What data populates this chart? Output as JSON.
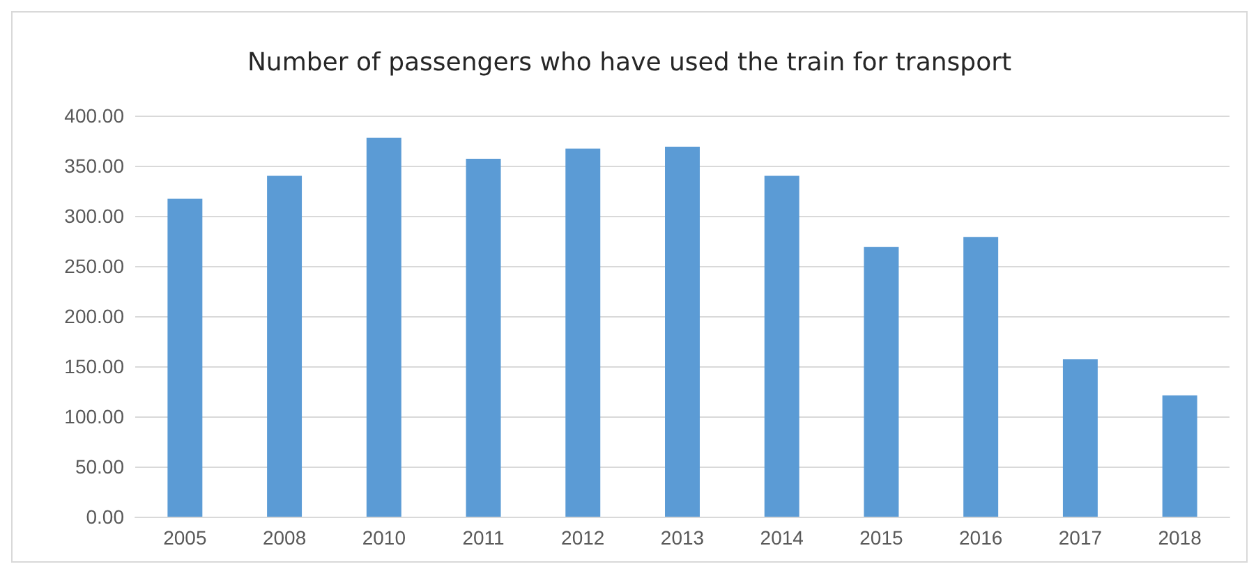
{
  "chart_data": {
    "type": "bar",
    "title": "Number of passengers who have used the train for transport",
    "categories": [
      "2005",
      "2008",
      "2010",
      "2011",
      "2012",
      "2013",
      "2014",
      "2015",
      "2016",
      "2017",
      "2018"
    ],
    "values": [
      317,
      340,
      378,
      357,
      367,
      369,
      340,
      269,
      279,
      157,
      121
    ],
    "color": "#5b9bd5",
    "ylim": [
      0,
      400
    ],
    "yticks": [
      {
        "value": 0,
        "label": "0.00"
      },
      {
        "value": 50,
        "label": "50.00"
      },
      {
        "value": 100,
        "label": "100.00"
      },
      {
        "value": 150,
        "label": "150.00"
      },
      {
        "value": 200,
        "label": "200.00"
      },
      {
        "value": 250,
        "label": "250.00"
      },
      {
        "value": 300,
        "label": "300.00"
      },
      {
        "value": 350,
        "label": "350.00"
      },
      {
        "value": 400,
        "label": "400.00"
      }
    ],
    "grid": true
  }
}
